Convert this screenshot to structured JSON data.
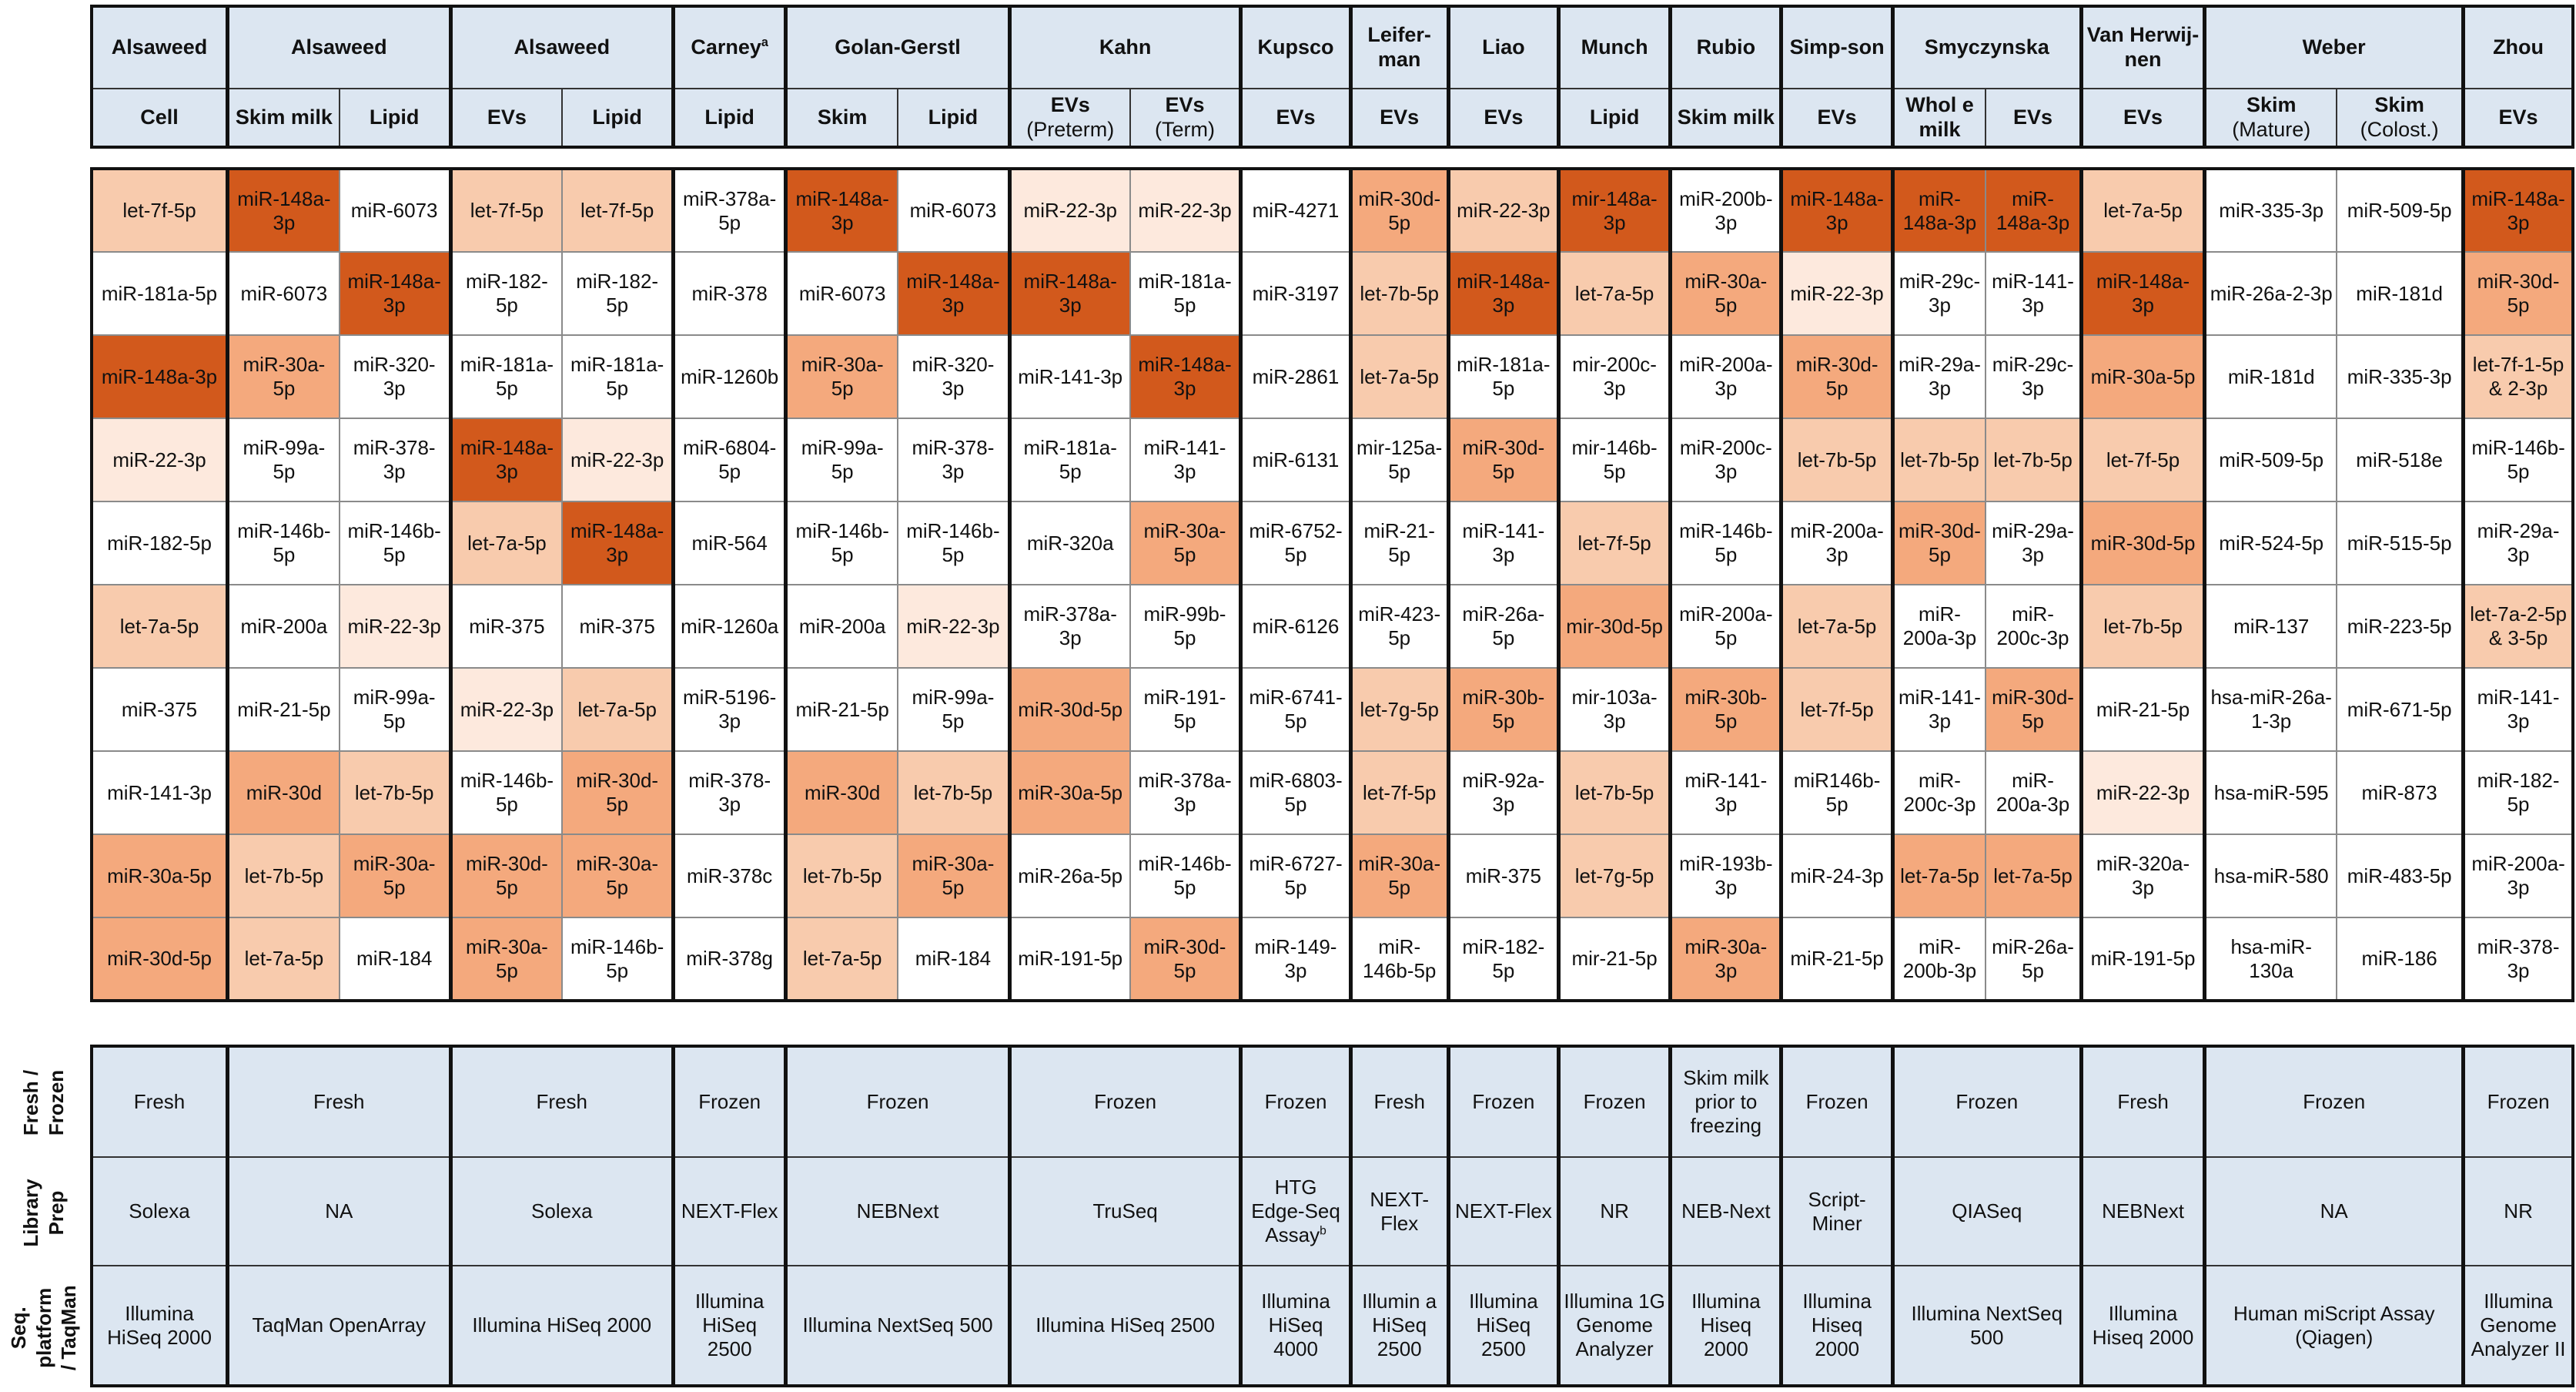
{
  "header": {
    "authors": [
      {
        "label": "Alsaweed",
        "span": 1
      },
      {
        "label": "Alsaweed",
        "span": 2
      },
      {
        "label": "Alsaweed",
        "span": 2
      },
      {
        "label": "Carney",
        "sup": "a",
        "span": 1
      },
      {
        "label": "Golan-Gerstl",
        "span": 2
      },
      {
        "label": "Kahn",
        "span": 2
      },
      {
        "label": "Kupsco",
        "span": 1
      },
      {
        "label": "Leifer-man",
        "span": 1
      },
      {
        "label": "Liao",
        "span": 1
      },
      {
        "label": "Munch",
        "span": 1
      },
      {
        "label": "Rubio",
        "span": 1
      },
      {
        "label": "Simp-son",
        "span": 1
      },
      {
        "label": "Smyczynska",
        "span": 2
      },
      {
        "label": "Van Herwij-nen",
        "span": 1
      },
      {
        "label": "Weber",
        "span": 2
      },
      {
        "label": "Zhou",
        "span": 1
      }
    ],
    "samples": [
      {
        "label": "Cell"
      },
      {
        "label": "Skim milk"
      },
      {
        "label": "Lipid"
      },
      {
        "label": "EVs"
      },
      {
        "label": "Lipid"
      },
      {
        "label": "Lipid"
      },
      {
        "label": "Skim"
      },
      {
        "label": "Lipid"
      },
      {
        "label": "EVs",
        "sub": "(Preterm)"
      },
      {
        "label": "EVs",
        "sub": "(Term)"
      },
      {
        "label": "EVs"
      },
      {
        "label": "EVs"
      },
      {
        "label": "EVs"
      },
      {
        "label": "Lipid"
      },
      {
        "label": "Skim milk"
      },
      {
        "label": "EVs"
      },
      {
        "label": "Whol e milk"
      },
      {
        "label": "EVs"
      },
      {
        "label": "EVs"
      },
      {
        "label": "Skim",
        "sub": "(Mature)"
      },
      {
        "label": "Skim",
        "sub": "(Colost.)"
      },
      {
        "label": "EVs"
      }
    ]
  },
  "colors": {
    "0": "#ffffff",
    "1": "#fde9dd",
    "2": "#f8cbad",
    "3": "#f4a97d",
    "4": "#d2591c"
  },
  "mirna_rows": [
    [
      [
        "let-7f-5p",
        2
      ],
      [
        "miR-148a-3p",
        4
      ],
      [
        "miR-6073",
        0
      ],
      [
        "let-7f-5p",
        2
      ],
      [
        "let-7f-5p",
        2
      ],
      [
        "miR-378a-5p",
        0
      ],
      [
        "miR-148a-3p",
        4
      ],
      [
        "miR-6073",
        0
      ],
      [
        "miR-22-3p",
        1
      ],
      [
        "miR-22-3p",
        1
      ],
      [
        "miR-4271",
        0
      ],
      [
        "miR-30d-5p",
        3
      ],
      [
        "miR-22-3p",
        2
      ],
      [
        "mir-148a-3p",
        4
      ],
      [
        "miR-200b-3p",
        0
      ],
      [
        "miR-148a-3p",
        4
      ],
      [
        "miR-148a-3p",
        4
      ],
      [
        "miR-148a-3p",
        4
      ],
      [
        "let-7a-5p",
        2
      ],
      [
        "miR-335-3p",
        0
      ],
      [
        "miR-509-5p",
        0
      ],
      [
        "miR-148a-3p",
        4
      ]
    ],
    [
      [
        "miR-181a-5p",
        0
      ],
      [
        "miR-6073",
        0
      ],
      [
        "miR-148a-3p",
        4
      ],
      [
        "miR-182-5p",
        0
      ],
      [
        "miR-182-5p",
        0
      ],
      [
        "miR-378",
        0
      ],
      [
        "miR-6073",
        0
      ],
      [
        "miR-148a-3p",
        4
      ],
      [
        "miR-148a-3p",
        4
      ],
      [
        "miR-181a-5p",
        0
      ],
      [
        "miR-3197",
        0
      ],
      [
        "let-7b-5p",
        2
      ],
      [
        "miR-148a-3p",
        4
      ],
      [
        "let-7a-5p",
        2
      ],
      [
        "miR-30a-5p",
        3
      ],
      [
        "miR-22-3p",
        1
      ],
      [
        "miR-29c-3p",
        0
      ],
      [
        "miR-141-3p",
        0
      ],
      [
        "miR-148a-3p",
        4
      ],
      [
        "miR-26a-2-3p",
        0
      ],
      [
        "miR-181d",
        0
      ],
      [
        "miR-30d-5p",
        3
      ]
    ],
    [
      [
        "miR-148a-3p",
        4
      ],
      [
        "miR-30a-5p",
        3
      ],
      [
        "miR-320-3p",
        0
      ],
      [
        "miR-181a-5p",
        0
      ],
      [
        "miR-181a-5p",
        0
      ],
      [
        "miR-1260b",
        0
      ],
      [
        "miR-30a-5p",
        3
      ],
      [
        "miR-320-3p",
        0
      ],
      [
        "miR-141-3p",
        0
      ],
      [
        "miR-148a-3p",
        4
      ],
      [
        "miR-2861",
        0
      ],
      [
        "let-7a-5p",
        2
      ],
      [
        "miR-181a-5p",
        0
      ],
      [
        "mir-200c-3p",
        0
      ],
      [
        "miR-200a-3p",
        0
      ],
      [
        "miR-30d-5p",
        3
      ],
      [
        "miR-29a-3p",
        0
      ],
      [
        "miR-29c-3p",
        0
      ],
      [
        "miR-30a-5p",
        3
      ],
      [
        "miR-181d",
        0
      ],
      [
        "miR-335-3p",
        0
      ],
      [
        "let-7f-1-5p & 2-3p",
        2
      ]
    ],
    [
      [
        "miR-22-3p",
        1
      ],
      [
        "miR-99a-5p",
        0
      ],
      [
        "miR-378-3p",
        0
      ],
      [
        "miR-148a-3p",
        4
      ],
      [
        "miR-22-3p",
        1
      ],
      [
        "miR-6804-5p",
        0
      ],
      [
        "miR-99a-5p",
        0
      ],
      [
        "miR-378-3p",
        0
      ],
      [
        "miR-181a-5p",
        0
      ],
      [
        "miR-141-3p",
        0
      ],
      [
        "miR-6131",
        0
      ],
      [
        "mir-125a-5p",
        0
      ],
      [
        "miR-30d-5p",
        3
      ],
      [
        "mir-146b-5p",
        0
      ],
      [
        "miR-200c-3p",
        0
      ],
      [
        "let-7b-5p",
        2
      ],
      [
        "let-7b-5p",
        2
      ],
      [
        "let-7b-5p",
        2
      ],
      [
        "let-7f-5p",
        2
      ],
      [
        "miR-509-5p",
        0
      ],
      [
        "miR-518e",
        0
      ],
      [
        "miR-146b-5p",
        0
      ]
    ],
    [
      [
        "miR-182-5p",
        0
      ],
      [
        "miR-146b-5p",
        0
      ],
      [
        "miR-146b-5p",
        0
      ],
      [
        "let-7a-5p",
        2
      ],
      [
        "miR-148a-3p",
        4
      ],
      [
        "miR-564",
        0
      ],
      [
        "miR-146b-5p",
        0
      ],
      [
        "miR-146b-5p",
        0
      ],
      [
        "miR-320a",
        0
      ],
      [
        "miR-30a-5p",
        3
      ],
      [
        "miR-6752-5p",
        0
      ],
      [
        "miR-21-5p",
        0
      ],
      [
        "miR-141-3p",
        0
      ],
      [
        "let-7f-5p",
        2
      ],
      [
        "miR-146b-5p",
        0
      ],
      [
        "miR-200a-3p",
        0
      ],
      [
        "miR-30d-5p",
        3
      ],
      [
        "miR-29a-3p",
        0
      ],
      [
        "miR-30d-5p",
        3
      ],
      [
        "miR-524-5p",
        0
      ],
      [
        "miR-515-5p",
        0
      ],
      [
        "miR-29a-3p",
        0
      ]
    ],
    [
      [
        "let-7a-5p",
        2
      ],
      [
        "miR-200a",
        0
      ],
      [
        "miR-22-3p",
        1
      ],
      [
        "miR-375",
        0
      ],
      [
        "miR-375",
        0
      ],
      [
        "miR-1260a",
        0
      ],
      [
        "miR-200a",
        0
      ],
      [
        "miR-22-3p",
        1
      ],
      [
        "miR-378a-3p",
        0
      ],
      [
        "miR-99b-5p",
        0
      ],
      [
        "miR-6126",
        0
      ],
      [
        "miR-423-5p",
        0
      ],
      [
        "miR-26a-5p",
        0
      ],
      [
        "mir-30d-5p",
        3
      ],
      [
        "miR-200a-5p",
        0
      ],
      [
        "let-7a-5p",
        2
      ],
      [
        "miR-200a-3p",
        0
      ],
      [
        "miR-200c-3p",
        0
      ],
      [
        "let-7b-5p",
        2
      ],
      [
        "miR-137",
        0
      ],
      [
        "miR-223-5p",
        0
      ],
      [
        "let-7a-2-5p & 3-5p",
        2
      ]
    ],
    [
      [
        "miR-375",
        0
      ],
      [
        "miR-21-5p",
        0
      ],
      [
        "miR-99a-5p",
        0
      ],
      [
        "miR-22-3p",
        1
      ],
      [
        "let-7a-5p",
        2
      ],
      [
        "miR-5196-3p",
        0
      ],
      [
        "miR-21-5p",
        0
      ],
      [
        "miR-99a-5p",
        0
      ],
      [
        "miR-30d-5p",
        3
      ],
      [
        "miR-191-5p",
        0
      ],
      [
        "miR-6741-5p",
        0
      ],
      [
        "let-7g-5p",
        2
      ],
      [
        "miR-30b-5p",
        3
      ],
      [
        "mir-103a-3p",
        0
      ],
      [
        "miR-30b-5p",
        3
      ],
      [
        "let-7f-5p",
        2
      ],
      [
        "miR-141-3p",
        0
      ],
      [
        "miR-30d-5p",
        3
      ],
      [
        "miR-21-5p",
        0
      ],
      [
        "hsa-miR-26a-1-3p",
        0
      ],
      [
        "miR-671-5p",
        0
      ],
      [
        "miR-141-3p",
        0
      ]
    ],
    [
      [
        "miR-141-3p",
        0
      ],
      [
        "miR-30d",
        3
      ],
      [
        "let-7b-5p",
        2
      ],
      [
        "miR-146b-5p",
        0
      ],
      [
        "miR-30d-5p",
        3
      ],
      [
        "miR-378-3p",
        0
      ],
      [
        "miR-30d",
        3
      ],
      [
        "let-7b-5p",
        2
      ],
      [
        "miR-30a-5p",
        3
      ],
      [
        "miR-378a-3p",
        0
      ],
      [
        "miR-6803-5p",
        0
      ],
      [
        "let-7f-5p",
        2
      ],
      [
        "miR-92a-3p",
        0
      ],
      [
        "let-7b-5p",
        2
      ],
      [
        "miR-141-3p",
        0
      ],
      [
        "miR146b-5p",
        0
      ],
      [
        "miR-200c-3p",
        0
      ],
      [
        "miR-200a-3p",
        0
      ],
      [
        "miR-22-3p",
        1
      ],
      [
        "hsa-miR-595",
        0
      ],
      [
        "miR-873",
        0
      ],
      [
        "miR-182-5p",
        0
      ]
    ],
    [
      [
        "miR-30a-5p",
        3
      ],
      [
        "let-7b-5p",
        2
      ],
      [
        "miR-30a-5p",
        3
      ],
      [
        "miR-30d-5p",
        3
      ],
      [
        "miR-30a-5p",
        3
      ],
      [
        "miR-378c",
        0
      ],
      [
        "let-7b-5p",
        2
      ],
      [
        "miR-30a-5p",
        3
      ],
      [
        "miR-26a-5p",
        0
      ],
      [
        "miR-146b-5p",
        0
      ],
      [
        "miR-6727-5p",
        0
      ],
      [
        "miR-30a-5p",
        3
      ],
      [
        "miR-375",
        0
      ],
      [
        "let-7g-5p",
        2
      ],
      [
        "miR-193b-3p",
        0
      ],
      [
        "miR-24-3p",
        0
      ],
      [
        "let-7a-5p",
        3
      ],
      [
        "let-7a-5p",
        3
      ],
      [
        "miR-320a-3p",
        0
      ],
      [
        "hsa-miR-580",
        0
      ],
      [
        "miR-483-5p",
        0
      ],
      [
        "miR-200a-3p",
        0
      ]
    ],
    [
      [
        "miR-30d-5p",
        3
      ],
      [
        "let-7a-5p",
        2
      ],
      [
        "miR-184",
        0
      ],
      [
        "miR-30a-5p",
        3
      ],
      [
        "miR-146b-5p",
        0
      ],
      [
        "miR-378g",
        0
      ],
      [
        "let-7a-5p",
        2
      ],
      [
        "miR-184",
        0
      ],
      [
        "miR-191-5p",
        0
      ],
      [
        "miR-30d-5p",
        3
      ],
      [
        "miR-149-3p",
        0
      ],
      [
        "miR-146b-5p",
        0
      ],
      [
        "miR-182-5p",
        0
      ],
      [
        "mir-21-5p",
        0
      ],
      [
        "miR-30a-3p",
        3
      ],
      [
        "miR-21-5p",
        0
      ],
      [
        "miR-200b-3p",
        0
      ],
      [
        "miR-26a-5p",
        0
      ],
      [
        "miR-191-5p",
        0
      ],
      [
        "hsa-miR-130a",
        0
      ],
      [
        "miR-186",
        0
      ],
      [
        "miR-378-3p",
        0
      ]
    ]
  ],
  "method_labels": [
    "Fresh / Frozen",
    "Library Prep",
    "Seq. platform / TaqMan"
  ],
  "methods": {
    "fresh_frozen": [
      "Fresh",
      "Fresh",
      "Fresh",
      "Frozen",
      "Frozen",
      "Frozen",
      "Frozen",
      "Fresh",
      "Frozen",
      "Frozen",
      "Skim milk prior to freezing",
      "Frozen",
      "Frozen",
      "Fresh",
      "Frozen",
      "Frozen"
    ],
    "library_prep": [
      {
        "t": "Solexa"
      },
      {
        "t": "NA"
      },
      {
        "t": "Solexa"
      },
      {
        "t": "NEXT-Flex"
      },
      {
        "t": "NEBNext"
      },
      {
        "t": "TruSeq"
      },
      {
        "t": "HTG Edge-Seq Assay",
        "sup": "b"
      },
      {
        "t": "NEXT-Flex"
      },
      {
        "t": "NEXT-Flex"
      },
      {
        "t": "NR"
      },
      {
        "t": "NEB-Next"
      },
      {
        "t": "Script-Miner"
      },
      {
        "t": "QIASeq"
      },
      {
        "t": "NEBNext"
      },
      {
        "t": "NA"
      },
      {
        "t": "NR"
      }
    ],
    "platform": [
      "Illumina HiSeq 2000",
      "TaqMan OpenArray",
      "Illumina HiSeq 2000",
      "Illumina HiSeq 2500",
      "Illumina NextSeq 500",
      "Illumina HiSeq 2500",
      "Illumina HiSeq 4000",
      "Illumin a HiSeq 2500",
      "Illumina HiSeq 2500",
      "Illumina 1G Genome Analyzer",
      "Illumina Hiseq 2000",
      "Illumina Hiseq 2000",
      "Illumina NextSeq 500",
      "Illumina Hiseq 2000",
      "Human miScript Assay (Qiagen)",
      "Illumina Genome Analyzer II"
    ]
  }
}
